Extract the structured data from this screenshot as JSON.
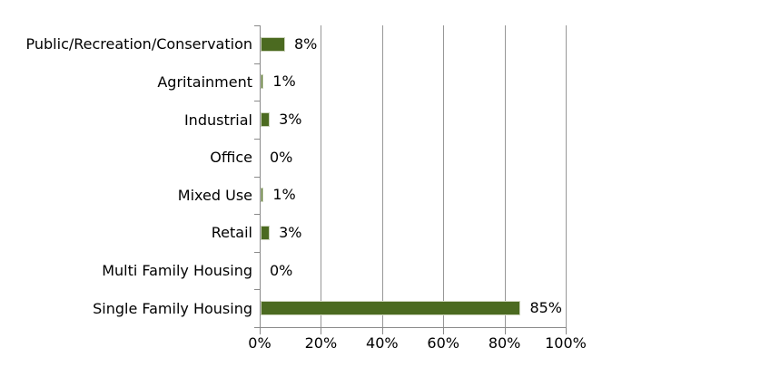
{
  "chart_data": {
    "type": "bar",
    "orientation": "horizontal",
    "title": "",
    "xlabel": "",
    "ylabel": "",
    "categories": [
      "Public/Recreation/Conservation",
      "Agritainment",
      "Industrial",
      "Office",
      "Mixed Use",
      "Retail",
      "Multi Family Housing",
      "Single Family Housing"
    ],
    "values": [
      8,
      1,
      3,
      0,
      1,
      3,
      0,
      85
    ],
    "value_labels": [
      "8%",
      "1%",
      "3%",
      "0%",
      "1%",
      "3%",
      "0%",
      "85%"
    ],
    "x_ticks": [
      {
        "label": "0%",
        "value": 0
      },
      {
        "label": "20%",
        "value": 20
      },
      {
        "label": "40%",
        "value": 40
      },
      {
        "label": "60%",
        "value": 60
      },
      {
        "label": "80%",
        "value": 80
      },
      {
        "label": "100%",
        "value": 100
      }
    ],
    "xlim": [
      0,
      100
    ],
    "grid": true,
    "legend": false,
    "colors": {
      "bar": "#4b6a20",
      "bar_border": "#ccd4bc",
      "gridline": "#979797",
      "axis": "#8a8a8a",
      "text": "#000000",
      "background": "#ffffff"
    }
  }
}
